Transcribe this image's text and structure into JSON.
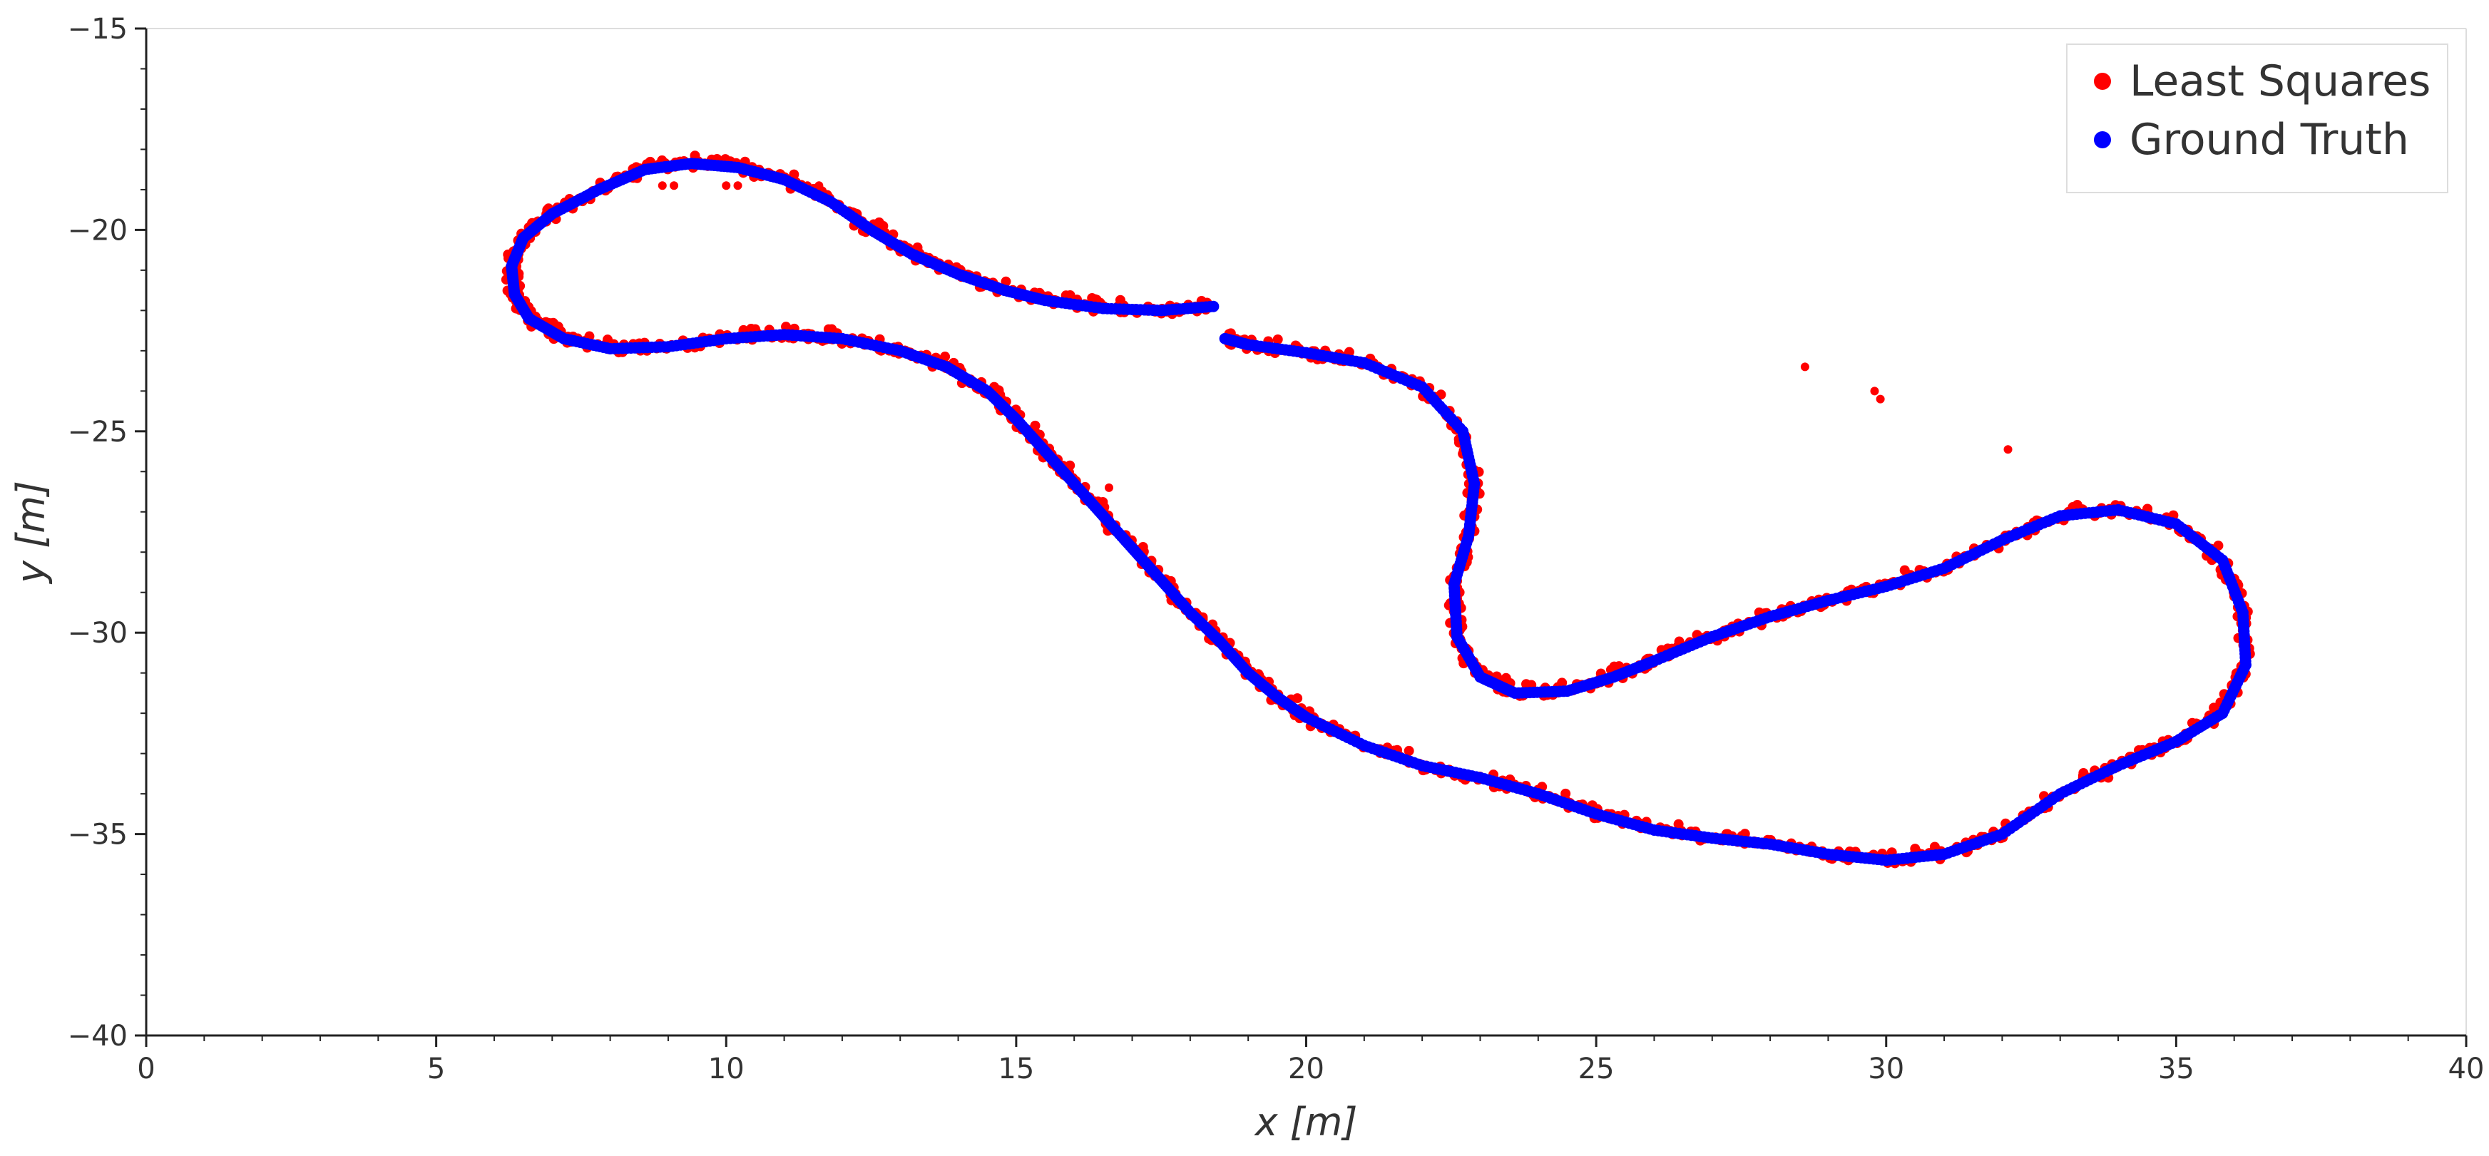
{
  "chart_data": {
    "type": "scatter",
    "title": "",
    "xlabel": "x [m]",
    "ylabel": "y [m]",
    "xlim": [
      0,
      40
    ],
    "ylim": [
      -40,
      -15
    ],
    "xticks": [
      0,
      5,
      10,
      15,
      20,
      25,
      30,
      35,
      40
    ],
    "yticks": [
      -40,
      -35,
      -30,
      -25,
      -20,
      -15
    ],
    "x_minor_step": 1,
    "y_minor_step": 1,
    "grid": false,
    "legend_position": "top-right",
    "series": [
      {
        "name": "Least Squares",
        "color": "#ff0000",
        "noisy": true,
        "path_x": [
          18.4,
          17.5,
          16.5,
          15.5,
          14.8,
          14.0,
          13.2,
          12.5,
          11.8,
          11.0,
          10.2,
          9.4,
          8.6,
          7.8,
          7.0,
          6.5,
          6.3,
          6.35,
          6.6,
          7.2,
          8.0,
          9.0,
          10.0,
          11.0,
          12.0,
          13.0,
          13.8,
          14.5,
          15.0,
          15.5,
          16.0,
          16.5,
          17.0,
          17.5,
          18.0,
          18.5,
          19.0,
          19.5,
          20.0,
          21.0,
          22.0,
          23.0,
          24.0,
          25.0,
          26.0,
          27.0,
          28.0,
          29.0,
          30.0,
          31.0,
          32.0,
          33.0,
          34.0,
          35.0,
          35.8,
          36.2,
          36.15,
          35.8,
          35.0,
          34.0,
          33.0,
          32.0,
          31.0,
          30.0,
          29.0,
          28.0,
          27.0,
          26.0,
          25.3,
          24.5,
          23.6,
          23.0,
          22.6,
          22.55,
          22.8,
          22.9,
          22.7,
          22.0,
          21.0,
          20.0,
          19.0,
          18.6
        ],
        "path_y": [
          -21.9,
          -22.0,
          -21.95,
          -21.75,
          -21.5,
          -21.1,
          -20.6,
          -20.0,
          -19.3,
          -18.75,
          -18.45,
          -18.35,
          -18.5,
          -19.0,
          -19.6,
          -20.2,
          -20.9,
          -21.6,
          -22.2,
          -22.7,
          -22.95,
          -22.9,
          -22.7,
          -22.6,
          -22.7,
          -23.0,
          -23.4,
          -24.0,
          -24.7,
          -25.5,
          -26.3,
          -27.1,
          -27.9,
          -28.7,
          -29.5,
          -30.2,
          -31.0,
          -31.6,
          -32.1,
          -32.8,
          -33.3,
          -33.6,
          -34.0,
          -34.5,
          -34.9,
          -35.1,
          -35.25,
          -35.5,
          -35.65,
          -35.5,
          -35.0,
          -34.0,
          -33.3,
          -32.7,
          -32.0,
          -30.8,
          -29.5,
          -28.2,
          -27.3,
          -26.95,
          -27.1,
          -27.7,
          -28.4,
          -28.85,
          -29.2,
          -29.6,
          -30.1,
          -30.7,
          -31.1,
          -31.45,
          -31.5,
          -31.1,
          -30.1,
          -28.8,
          -27.6,
          -26.3,
          -25.0,
          -23.9,
          -23.3,
          -23.05,
          -22.85,
          -22.7
        ],
        "outliers_x": [
          28.6,
          29.8,
          29.9,
          32.1,
          16.6,
          8.9,
          9.1,
          10.0,
          10.2,
          11.2,
          11.4,
          11.6
        ],
        "outliers_y": [
          -23.4,
          -24.0,
          -24.2,
          -25.45,
          -26.4,
          -18.9,
          -18.9,
          -18.9,
          -18.9,
          -18.9,
          -18.9,
          -18.9
        ]
      },
      {
        "name": "Ground Truth",
        "color": "#0000ff",
        "noisy": false,
        "path_x": [
          18.4,
          17.5,
          16.5,
          15.5,
          14.8,
          14.0,
          13.2,
          12.5,
          11.8,
          11.0,
          10.2,
          9.4,
          8.6,
          7.8,
          7.0,
          6.5,
          6.3,
          6.35,
          6.6,
          7.2,
          8.0,
          9.0,
          10.0,
          11.0,
          12.0,
          13.0,
          13.8,
          14.5,
          15.0,
          15.5,
          16.0,
          16.5,
          17.0,
          17.5,
          18.0,
          18.5,
          19.0,
          19.5,
          20.0,
          21.0,
          22.0,
          23.0,
          24.0,
          25.0,
          26.0,
          27.0,
          28.0,
          29.0,
          30.0,
          31.0,
          32.0,
          33.0,
          34.0,
          35.0,
          35.8,
          36.2,
          36.15,
          35.8,
          35.0,
          34.0,
          33.0,
          32.0,
          31.0,
          30.0,
          29.0,
          28.0,
          27.0,
          26.0,
          25.3,
          24.5,
          23.6,
          23.0,
          22.6,
          22.55,
          22.8,
          22.9,
          22.7,
          22.0,
          21.0,
          20.0,
          19.0,
          18.6
        ],
        "path_y": [
          -21.9,
          -22.0,
          -21.95,
          -21.75,
          -21.5,
          -21.1,
          -20.6,
          -20.0,
          -19.3,
          -18.75,
          -18.45,
          -18.35,
          -18.5,
          -19.0,
          -19.6,
          -20.2,
          -20.9,
          -21.6,
          -22.2,
          -22.7,
          -22.95,
          -22.9,
          -22.7,
          -22.6,
          -22.7,
          -23.0,
          -23.4,
          -24.0,
          -24.7,
          -25.5,
          -26.3,
          -27.1,
          -27.9,
          -28.7,
          -29.5,
          -30.2,
          -31.0,
          -31.6,
          -32.1,
          -32.8,
          -33.3,
          -33.6,
          -34.0,
          -34.5,
          -34.9,
          -35.1,
          -35.25,
          -35.5,
          -35.65,
          -35.5,
          -35.0,
          -34.0,
          -33.3,
          -32.7,
          -32.0,
          -30.8,
          -29.5,
          -28.2,
          -27.3,
          -26.95,
          -27.1,
          -27.7,
          -28.4,
          -28.85,
          -29.2,
          -29.6,
          -30.1,
          -30.7,
          -31.1,
          -31.45,
          -31.5,
          -31.1,
          -30.1,
          -28.8,
          -27.6,
          -26.3,
          -25.0,
          -23.9,
          -23.3,
          -23.05,
          -22.85,
          -22.7
        ]
      }
    ]
  }
}
